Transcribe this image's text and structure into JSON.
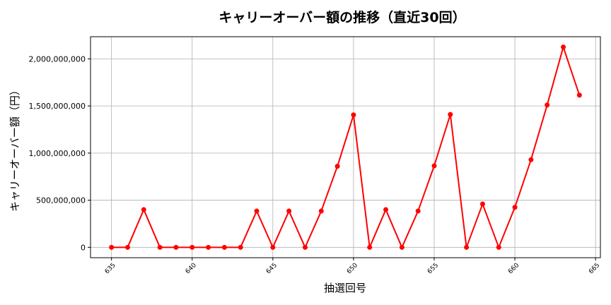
{
  "chart_data": {
    "type": "line",
    "title": "キャリーオーバー額の推移（直近30回）",
    "xlabel": "抽選回号",
    "ylabel": "キャリーオーバー額（円）",
    "x": [
      635,
      636,
      637,
      638,
      639,
      640,
      641,
      642,
      643,
      644,
      645,
      646,
      647,
      648,
      649,
      650,
      651,
      652,
      653,
      654,
      655,
      656,
      657,
      658,
      659,
      660,
      661,
      662,
      663,
      664
    ],
    "series": [
      {
        "values": [
          0,
          0,
          400000000,
          0,
          0,
          0,
          0,
          0,
          0,
          385000000,
          0,
          385000000,
          0,
          385000000,
          860000000,
          1405000000,
          0,
          400000000,
          0,
          385000000,
          865000000,
          1410000000,
          0,
          460000000,
          0,
          425000000,
          930000000,
          1510000000,
          2125000000,
          1615000000
        ],
        "color": "#ff0000"
      }
    ],
    "xlim": [
      633.7,
      665.3
    ],
    "ylim": [
      -110000000,
      2235000000
    ],
    "xticks": [
      635,
      640,
      645,
      650,
      655,
      660,
      665
    ],
    "yticks": [
      0,
      500000000,
      1000000000,
      1500000000,
      2000000000
    ],
    "ytick_labels": [
      "0",
      "500,000,000",
      "1,000,000,000",
      "1,500,000,000",
      "2,000,000,000"
    ],
    "grid": true,
    "legend": "none"
  }
}
